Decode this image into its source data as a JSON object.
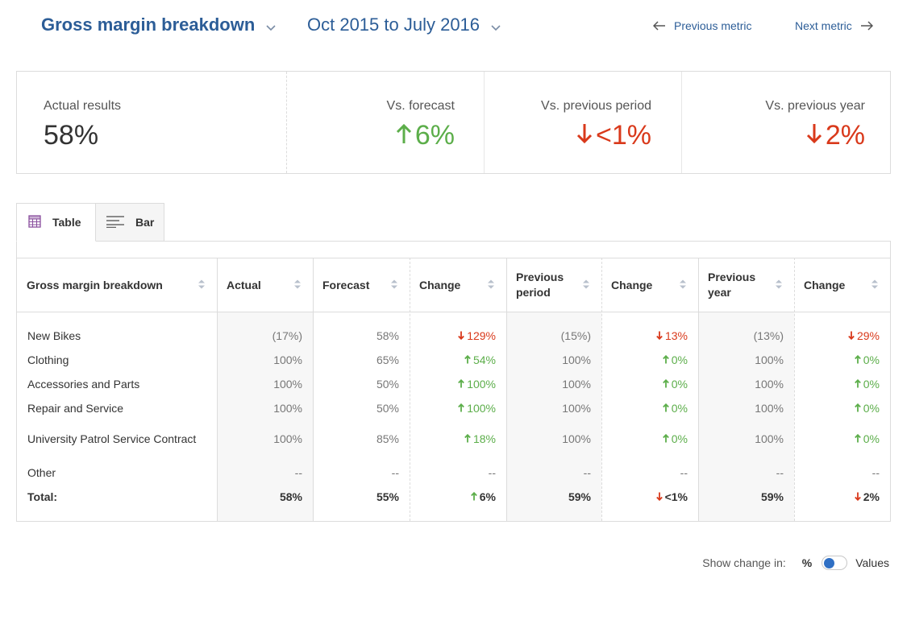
{
  "header": {
    "title": "Gross margin breakdown",
    "period": "Oct 2015 to July 2016",
    "prev_label": "Previous metric",
    "next_label": "Next metric"
  },
  "summary": {
    "actual_label": "Actual results",
    "actual_value": "58%",
    "forecast_label": "Vs. forecast",
    "forecast_value": "6%",
    "forecast_dir": "up",
    "prev_period_label": "Vs. previous period",
    "prev_period_value": "<1%",
    "prev_period_dir": "down",
    "prev_year_label": "Vs. previous year",
    "prev_year_value": "2%",
    "prev_year_dir": "down"
  },
  "tabs": {
    "table_label": "Table",
    "bar_label": "Bar",
    "active": "Table"
  },
  "table": {
    "headers": {
      "breakdown": "Gross margin breakdown",
      "actual": "Actual",
      "forecast": "Forecast",
      "change1": "Change",
      "prev_period": "Previous period",
      "change2": "Change",
      "prev_year": "Previous year",
      "change3": "Change"
    },
    "rows": [
      {
        "name": "New Bikes",
        "actual": "(17%)",
        "forecast": "58%",
        "chg1": "129%",
        "chg1_dir": "down",
        "prev_period": "(15%)",
        "chg2": "13%",
        "chg2_dir": "down",
        "prev_year": "(13%)",
        "chg3": "29%",
        "chg3_dir": "down"
      },
      {
        "name": "Clothing",
        "actual": "100%",
        "forecast": "65%",
        "chg1": "54%",
        "chg1_dir": "up",
        "prev_period": "100%",
        "chg2": "0%",
        "chg2_dir": "up",
        "prev_year": "100%",
        "chg3": "0%",
        "chg3_dir": "up"
      },
      {
        "name": "Accessories and Parts",
        "actual": "100%",
        "forecast": "50%",
        "chg1": "100%",
        "chg1_dir": "up",
        "prev_period": "100%",
        "chg2": "0%",
        "chg2_dir": "up",
        "prev_year": "100%",
        "chg3": "0%",
        "chg3_dir": "up"
      },
      {
        "name": "Repair and Service",
        "actual": "100%",
        "forecast": "50%",
        "chg1": "100%",
        "chg1_dir": "up",
        "prev_period": "100%",
        "chg2": "0%",
        "chg2_dir": "up",
        "prev_year": "100%",
        "chg3": "0%",
        "chg3_dir": "up"
      },
      {
        "name": "University Patrol Service Contract",
        "actual": "100%",
        "forecast": "85%",
        "chg1": "18%",
        "chg1_dir": "up",
        "prev_period": "100%",
        "chg2": "0%",
        "chg2_dir": "up",
        "prev_year": "100%",
        "chg3": "0%",
        "chg3_dir": "up"
      },
      {
        "name": "Other",
        "actual": "--",
        "forecast": "--",
        "chg1": "--",
        "chg1_dir": "none",
        "prev_period": "--",
        "chg2": "--",
        "chg2_dir": "none",
        "prev_year": "--",
        "chg3": "--",
        "chg3_dir": "none"
      }
    ],
    "total": {
      "name": "Total:",
      "actual": "58%",
      "forecast": "55%",
      "chg1": "6%",
      "chg1_dir": "up",
      "prev_period": "59%",
      "chg2": "<1%",
      "chg2_dir": "down",
      "prev_year": "59%",
      "chg3": "2%",
      "chg3_dir": "down"
    }
  },
  "footer": {
    "show_change_label": "Show change in:",
    "percent_label": "%",
    "values_label": "Values"
  },
  "colors": {
    "brand_blue": "#2c5d97",
    "up_green": "#5cae4a",
    "down_red": "#d9391b",
    "toggle_blue": "#2f6fc4"
  }
}
